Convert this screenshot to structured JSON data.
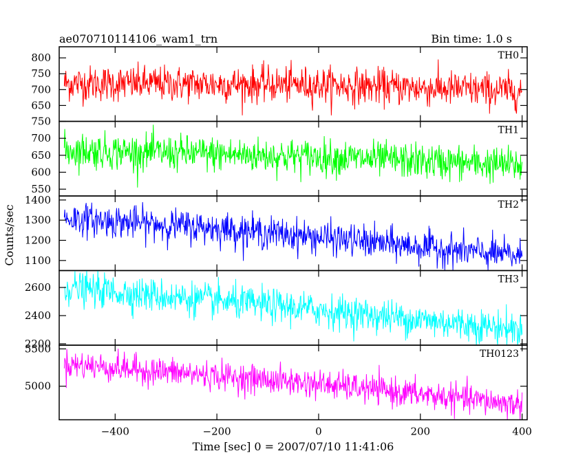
{
  "chart_data": {
    "type": "line",
    "title": "ae070710114106_wam1_trn",
    "subtitle": "Bin time: 1.0 s",
    "xlabel": "Time [sec] 0 = 2007/07/10 11:41:06",
    "ylabel": "Counts/sec",
    "xlim": [
      -510,
      410
    ],
    "x_ticks": [
      -400,
      -200,
      0,
      200,
      400
    ],
    "x_tick_labels": [
      "−400",
      "−200",
      "0",
      "200",
      "400"
    ],
    "x_range": [
      -500,
      400
    ],
    "bin_time": 1.0,
    "grid": false,
    "panels": [
      {
        "name": "TH0",
        "color": "#ff0000",
        "ylim": [
          600,
          835
        ],
        "y_ticks": [
          650,
          700,
          750,
          800
        ],
        "y_tick_labels": [
          "650",
          "700",
          "750",
          "800"
        ],
        "trend": [
          [
            -500,
            720
          ],
          [
            0,
            715
          ],
          [
            400,
            695
          ]
        ],
        "noise_sd": 28
      },
      {
        "name": "TH1",
        "color": "#00ff00",
        "ylim": [
          530,
          750
        ],
        "y_ticks": [
          550,
          600,
          650,
          700,
          750
        ],
        "y_tick_labels": [
          "550",
          "600",
          "650",
          "700",
          "750"
        ],
        "trend": [
          [
            -500,
            665
          ],
          [
            0,
            645
          ],
          [
            400,
            620
          ]
        ],
        "noise_sd": 26
      },
      {
        "name": "TH2",
        "color": "#0000ff",
        "ylim": [
          1050,
          1420
        ],
        "y_ticks": [
          1100,
          1200,
          1300,
          1400
        ],
        "y_tick_labels": [
          "1100",
          "1200",
          "1300",
          "1400"
        ],
        "trend": [
          [
            -500,
            1310
          ],
          [
            -200,
            1260
          ],
          [
            0,
            1215
          ],
          [
            400,
            1120
          ]
        ],
        "noise_sd": 40
      },
      {
        "name": "TH3",
        "color": "#00ffff",
        "ylim": [
          2190,
          2720
        ],
        "y_ticks": [
          2200,
          2400,
          2600
        ],
        "y_tick_labels": [
          "2200",
          "2400",
          "2600"
        ],
        "trend": [
          [
            -500,
            2600
          ],
          [
            0,
            2440
          ],
          [
            400,
            2300
          ]
        ],
        "noise_sd": 60
      },
      {
        "name": "TH0123",
        "color": "#ff00ff",
        "ylim": [
          4550,
          5550
        ],
        "y_ticks": [
          5000,
          5500
        ],
        "y_tick_labels": [
          "5000",
          "5500"
        ],
        "trend": [
          [
            -500,
            5300
          ],
          [
            0,
            5030
          ],
          [
            400,
            4750
          ]
        ],
        "noise_sd": 95
      }
    ]
  }
}
